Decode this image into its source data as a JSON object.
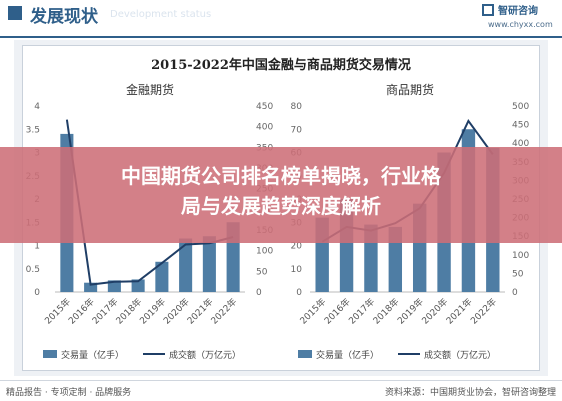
{
  "header": {
    "title": "发展现状",
    "subtitle": "Development status",
    "brand": "智研咨询",
    "url": "www.chyxx.com"
  },
  "banner": {
    "line1": "中国期货公司排名榜单揭晓，行业格",
    "line2": "局与发展趋势深度解析"
  },
  "footer": {
    "left": "精品报告 · 专项定制 · 品牌服务",
    "right": "资料来源：中国期货业协会，智研咨询整理"
  },
  "colors": {
    "bar": "#4e7da4",
    "line": "#1f3e66",
    "banner": "#cd6e78"
  },
  "chart_data": [
    {
      "type": "bar",
      "title": "2015-2022年中国金融与商品期货交易情况",
      "subtitle": "金融期货",
      "categories": [
        "2015年",
        "2016年",
        "2017年",
        "2018年",
        "2019年",
        "2020年",
        "2021年",
        "2022年"
      ],
      "series": [
        {
          "name": "交易量（亿手）",
          "type": "bar",
          "axis": "left",
          "values": [
            3.4,
            0.2,
            0.25,
            0.27,
            0.65,
            1.15,
            1.2,
            1.5
          ]
        },
        {
          "name": "成交额（万亿元）",
          "type": "line",
          "axis": "right",
          "values": [
            417,
            18,
            25,
            26,
            70,
            115,
            118,
            133
          ]
        }
      ],
      "ylim_left": [
        0,
        4
      ],
      "yticks_left": [
        "0",
        "0.5",
        "1",
        "1.5",
        "2",
        "2.5",
        "3",
        "3.5",
        "4"
      ],
      "ylim_right": [
        0,
        450
      ],
      "yticks_right": [
        "0",
        "50",
        "100",
        "150",
        "200",
        "250",
        "300",
        "350",
        "400",
        "450"
      ]
    },
    {
      "type": "bar",
      "subtitle": "商品期货",
      "categories": [
        "2015年",
        "2016年",
        "2017年",
        "2018年",
        "2019年",
        "2020年",
        "2021年",
        "2022年"
      ],
      "series": [
        {
          "name": "交易量（亿手）",
          "type": "bar",
          "axis": "left",
          "values": [
            32,
            40,
            29,
            28,
            38,
            60,
            70,
            62
          ]
        },
        {
          "name": "成交额（万亿元）",
          "type": "line",
          "axis": "right",
          "values": [
            135,
            175,
            165,
            185,
            225,
            320,
            460,
            370
          ]
        }
      ],
      "ylim_left": [
        0,
        80
      ],
      "yticks_left": [
        "0",
        "10",
        "20",
        "30",
        "40",
        "50",
        "60",
        "70",
        "80"
      ],
      "ylim_right": [
        0,
        500
      ],
      "yticks_right": [
        "0",
        "50",
        "100",
        "150",
        "200",
        "250",
        "300",
        "350",
        "400",
        "450",
        "500"
      ]
    }
  ]
}
